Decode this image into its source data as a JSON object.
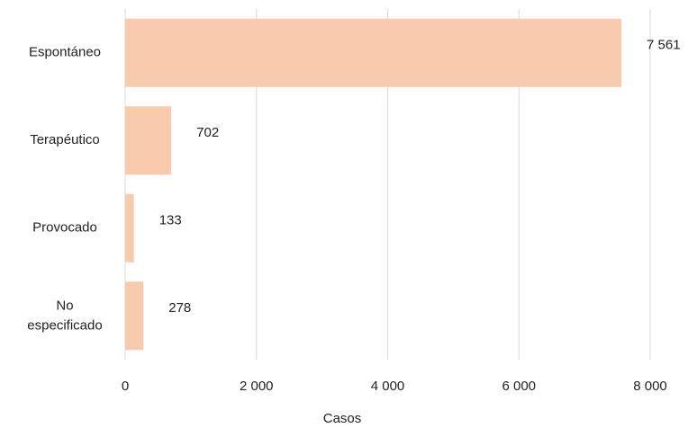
{
  "chart_data": {
    "type": "hbar",
    "categories": [
      "Espontáneo",
      "Terapéutico",
      "Provocado",
      "No especificado"
    ],
    "values": [
      7561,
      702,
      133,
      278
    ],
    "value_labels": [
      "7 561",
      "702",
      "133",
      "278"
    ],
    "color": "#f8cbad",
    "xlabel": "Casos",
    "xlim": [
      0,
      8000
    ],
    "xticks": [
      0,
      {
        "value": 2000,
        "label": "2 000"
      },
      {
        "value": 4000,
        "label": "4 000"
      },
      {
        "value": 6000,
        "label": "6 000"
      },
      {
        "value": 8000,
        "label": "8 000"
      }
    ],
    "grid": true
  }
}
